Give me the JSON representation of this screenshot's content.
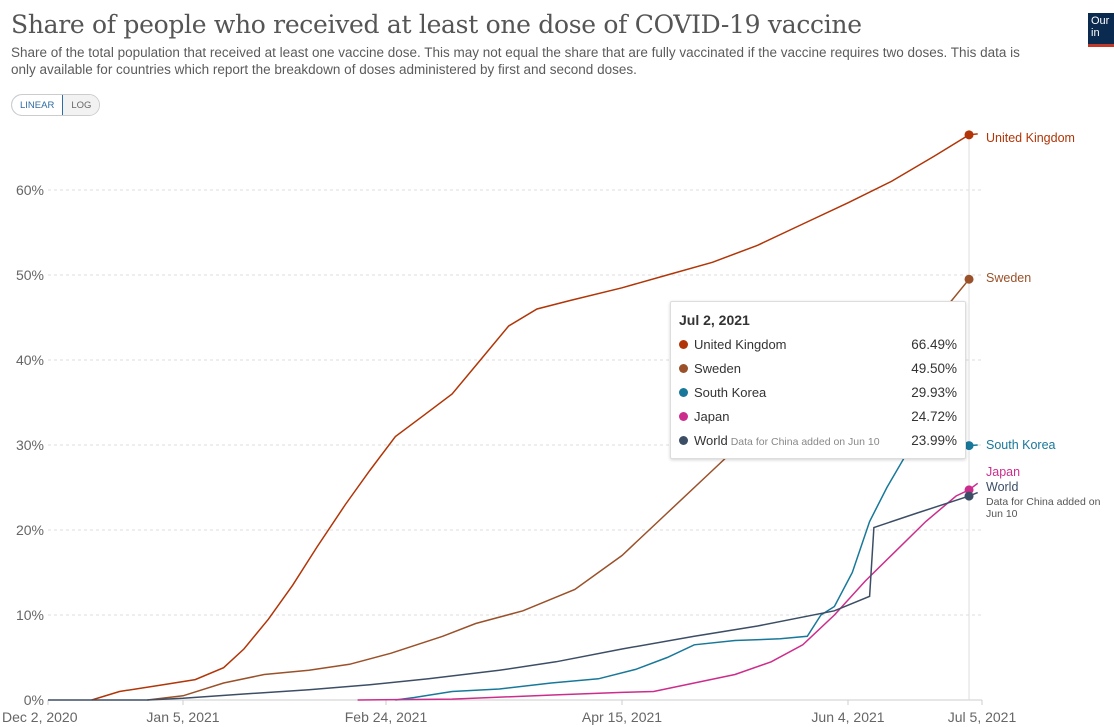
{
  "header": {
    "title": "Share of people who received at least one dose of COVID-19 vaccine",
    "subtitle": "Share of the total population that received at least one vaccine dose. This may not equal the share that are fully vaccinated if the vaccine requires two doses. This data is only available for countries which report the breakdown of doses administered by first and second doses.",
    "logo_text": "Our in"
  },
  "controls": {
    "linear_label": "LINEAR",
    "log_label": "LOG",
    "active": "LINEAR"
  },
  "tooltip": {
    "date": "Jul 2, 2021",
    "rows": [
      {
        "name": "United Kingdom",
        "note": "",
        "value": "66.49%",
        "color": "#b13507"
      },
      {
        "name": "Sweden",
        "note": "",
        "value": "49.50%",
        "color": "#9a5129"
      },
      {
        "name": "South Korea",
        "note": "",
        "value": "29.93%",
        "color": "#18789a"
      },
      {
        "name": "Japan",
        "note": "",
        "value": "24.72%",
        "color": "#cc2d8c"
      },
      {
        "name": "World",
        "note": "Data for China added on Jun 10",
        "value": "23.99%",
        "color": "#3c4e66"
      }
    ]
  },
  "end_labels": {
    "uk": "United Kingdom",
    "sweden": "Sweden",
    "south_korea": "South Korea",
    "japan": "Japan",
    "world": "World",
    "world_note": "Data for China added on Jun 10"
  },
  "chart_data": {
    "type": "line",
    "title": "Share of people who received at least one dose of COVID-19 vaccine",
    "xlabel": "",
    "ylabel": "",
    "x_ticks": [
      "Dec 2, 2020",
      "Jan 5, 2021",
      "Feb 24, 2021",
      "Apr 15, 2021",
      "Jun 4, 2021",
      "Jul 5, 2021"
    ],
    "y_ticks": [
      "0%",
      "10%",
      "20%",
      "30%",
      "40%",
      "50%",
      "60%"
    ],
    "ylim": [
      0,
      67
    ],
    "xlim": [
      "2020-12-02",
      "2021-07-05"
    ],
    "grid": "horizontal-dashed",
    "hover_date": "2021-07-02",
    "series": [
      {
        "name": "United Kingdom",
        "color": "#b13507",
        "points": [
          [
            "2020-12-13",
            0
          ],
          [
            "2020-12-20",
            1
          ],
          [
            "2020-12-31",
            1.8
          ],
          [
            "2021-01-08",
            2.4
          ],
          [
            "2021-01-15",
            3.8
          ],
          [
            "2021-01-20",
            6
          ],
          [
            "2021-01-26",
            9.5
          ],
          [
            "2021-02-01",
            13.5
          ],
          [
            "2021-02-07",
            18
          ],
          [
            "2021-02-14",
            23
          ],
          [
            "2021-02-20",
            27
          ],
          [
            "2021-02-26",
            31
          ],
          [
            "2021-03-04",
            33.5
          ],
          [
            "2021-03-10",
            36
          ],
          [
            "2021-03-16",
            40
          ],
          [
            "2021-03-22",
            44
          ],
          [
            "2021-03-28",
            46
          ],
          [
            "2021-04-04",
            47
          ],
          [
            "2021-04-15",
            48.5
          ],
          [
            "2021-04-25",
            50
          ],
          [
            "2021-05-05",
            51.5
          ],
          [
            "2021-05-15",
            53.5
          ],
          [
            "2021-05-25",
            56
          ],
          [
            "2021-06-04",
            58.5
          ],
          [
            "2021-06-14",
            61
          ],
          [
            "2021-06-24",
            64
          ],
          [
            "2021-07-02",
            66.49
          ],
          [
            "2021-07-04",
            66.6
          ]
        ]
      },
      {
        "name": "Sweden",
        "color": "#9a5129",
        "points": [
          [
            "2020-12-27",
            0
          ],
          [
            "2021-01-05",
            0.5
          ],
          [
            "2021-01-15",
            2
          ],
          [
            "2021-01-25",
            3
          ],
          [
            "2021-02-05",
            3.5
          ],
          [
            "2021-02-15",
            4.2
          ],
          [
            "2021-02-25",
            5.5
          ],
          [
            "2021-03-08",
            7.5
          ],
          [
            "2021-03-15",
            9
          ],
          [
            "2021-03-25",
            10.5
          ],
          [
            "2021-04-05",
            13
          ],
          [
            "2021-04-15",
            17
          ],
          [
            "2021-04-25",
            22
          ],
          [
            "2021-05-05",
            27
          ],
          [
            "2021-05-15",
            32
          ],
          [
            "2021-05-25",
            36
          ],
          [
            "2021-06-04",
            39
          ],
          [
            "2021-06-14",
            42
          ],
          [
            "2021-06-24",
            45
          ],
          [
            "2021-06-28",
            47
          ],
          [
            "2021-07-02",
            49.5
          ]
        ]
      },
      {
        "name": "South Korea",
        "color": "#18789a",
        "points": [
          [
            "2021-02-26",
            0
          ],
          [
            "2021-03-02",
            0.3
          ],
          [
            "2021-03-10",
            1
          ],
          [
            "2021-03-20",
            1.3
          ],
          [
            "2021-03-31",
            2
          ],
          [
            "2021-04-10",
            2.5
          ],
          [
            "2021-04-18",
            3.6
          ],
          [
            "2021-04-25",
            5
          ],
          [
            "2021-05-01",
            6.5
          ],
          [
            "2021-05-10",
            7
          ],
          [
            "2021-05-20",
            7.2
          ],
          [
            "2021-05-26",
            7.5
          ],
          [
            "2021-05-29",
            10
          ],
          [
            "2021-06-01",
            11
          ],
          [
            "2021-06-05",
            15
          ],
          [
            "2021-06-09",
            21
          ],
          [
            "2021-06-13",
            25
          ],
          [
            "2021-06-17",
            28.5
          ],
          [
            "2021-06-22",
            29.5
          ],
          [
            "2021-07-02",
            29.93
          ],
          [
            "2021-07-04",
            30
          ]
        ]
      },
      {
        "name": "Japan",
        "color": "#cc2d8c",
        "points": [
          [
            "2021-02-17",
            0
          ],
          [
            "2021-03-10",
            0.1
          ],
          [
            "2021-04-01",
            0.6
          ],
          [
            "2021-04-15",
            0.9
          ],
          [
            "2021-04-22",
            1
          ],
          [
            "2021-05-01",
            2
          ],
          [
            "2021-05-10",
            3
          ],
          [
            "2021-05-18",
            4.5
          ],
          [
            "2021-05-25",
            6.5
          ],
          [
            "2021-06-01",
            10
          ],
          [
            "2021-06-08",
            14
          ],
          [
            "2021-06-15",
            17.5
          ],
          [
            "2021-06-22",
            21
          ],
          [
            "2021-06-29",
            24
          ],
          [
            "2021-07-02",
            24.72
          ],
          [
            "2021-07-04",
            25.5
          ]
        ]
      },
      {
        "name": "World",
        "color": "#3c4e66",
        "points": [
          [
            "2020-12-02",
            0
          ],
          [
            "2020-12-27",
            0
          ],
          [
            "2021-01-05",
            0.2
          ],
          [
            "2021-01-20",
            0.7
          ],
          [
            "2021-02-05",
            1.2
          ],
          [
            "2021-02-20",
            1.8
          ],
          [
            "2021-03-05",
            2.5
          ],
          [
            "2021-03-20",
            3.5
          ],
          [
            "2021-04-01",
            4.5
          ],
          [
            "2021-04-15",
            6
          ],
          [
            "2021-05-01",
            7.5
          ],
          [
            "2021-05-15",
            8.7
          ],
          [
            "2021-06-01",
            10.5
          ],
          [
            "2021-06-09",
            12.2
          ],
          [
            "2021-06-10",
            20.3
          ],
          [
            "2021-06-20",
            22
          ],
          [
            "2021-07-02",
            23.99
          ],
          [
            "2021-07-04",
            24.4
          ]
        ]
      }
    ]
  }
}
